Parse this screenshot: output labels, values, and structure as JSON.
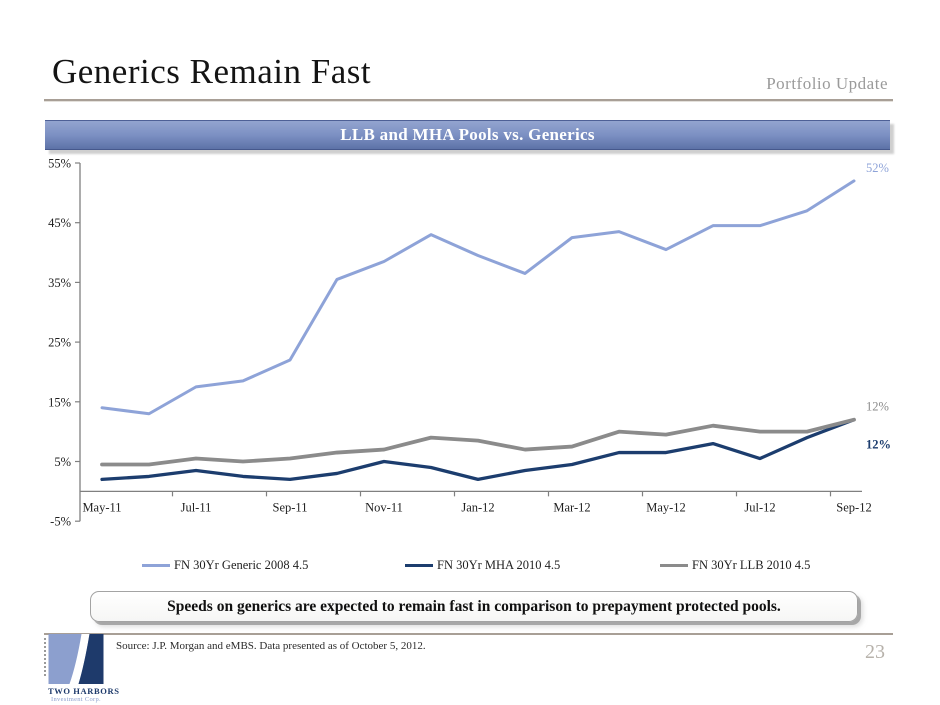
{
  "slide": {
    "title": "Generics Remain Fast",
    "header_right": "Portfolio Update",
    "callout": "Speeds on generics are expected to remain fast in comparison to prepayment protected pools.",
    "source_note": "Source: J.P. Morgan and eMBS. Data presented as of October 5, 2012.",
    "page_number": "23",
    "logo": {
      "name": "TWO HARBORS",
      "subtitle": "Investment Corp."
    }
  },
  "colors": {
    "bar_top": "#93a4cf",
    "bar_mid": "#7c90c3",
    "bar_bottom": "#5d72a7",
    "rule": "#a89f96",
    "axis": "#808080",
    "logo_light": "#8c9fce",
    "logo_dark": "#1e3a6b",
    "page_number": "#b7b2ab"
  },
  "chart_data": {
    "type": "line",
    "title": "LLB and MHA Pools vs. Generics",
    "categories": [
      "May-11",
      "Jun-11",
      "Jul-11",
      "Aug-11",
      "Sep-11",
      "Oct-11",
      "Nov-11",
      "Dec-11",
      "Jan-12",
      "Feb-12",
      "Mar-12",
      "Apr-12",
      "May-12",
      "Jun-12",
      "Jul-12",
      "Aug-12",
      "Sep-12"
    ],
    "x_tick_labels": [
      "May-11",
      "Jul-11",
      "Sep-11",
      "Nov-11",
      "Jan-12",
      "Mar-12",
      "May-12",
      "Jul-12",
      "Sep-12"
    ],
    "y_ticks": [
      "55%",
      "45%",
      "35%",
      "25%",
      "15%",
      "5%",
      "-5%"
    ],
    "ylim": [
      -5,
      55
    ],
    "grid": false,
    "legend_position": "bottom",
    "series": [
      {
        "name": "FN 30Yr Generic 2008 4.5",
        "color": "#8ea3d8",
        "values": [
          14,
          13,
          17.5,
          18.5,
          22,
          35.5,
          38.5,
          43,
          39.5,
          36.5,
          42.5,
          43.5,
          40.5,
          44.5,
          44.5,
          47,
          52
        ],
        "end_label": "52%",
        "end_label_position": "above"
      },
      {
        "name": "FN 30Yr MHA 2010 4.5",
        "color": "#1c3d6e",
        "values": [
          2,
          2.5,
          3.5,
          2.5,
          2,
          3,
          5,
          4,
          2,
          3.5,
          4.5,
          6.5,
          6.5,
          8,
          5.5,
          9,
          12
        ],
        "end_label": "12%",
        "end_label_position": "below"
      },
      {
        "name": "FN 30Yr LLB 2010 4.5",
        "color": "#8b8b8b",
        "values": [
          4.5,
          4.5,
          5.5,
          5,
          5.5,
          6.5,
          7,
          9,
          8.5,
          7,
          7.5,
          10,
          9.5,
          11,
          10,
          10,
          12
        ],
        "end_label": "12%",
        "end_label_position": "above"
      }
    ]
  }
}
